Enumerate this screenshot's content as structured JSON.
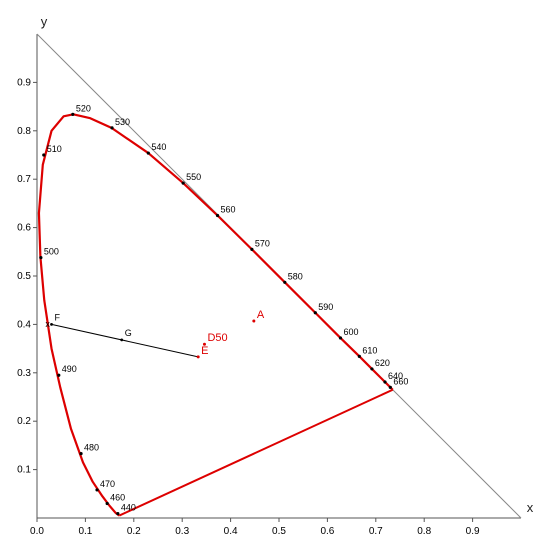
{
  "chart_data": {
    "type": "scatter",
    "title": "",
    "xlabel": "x",
    "ylabel": "y",
    "xlim": [
      0,
      1
    ],
    "ylim": [
      0,
      1
    ],
    "x_ticks": [
      0,
      0.1,
      0.2,
      0.3,
      0.4,
      0.5,
      0.6,
      0.7,
      0.8,
      0.9
    ],
    "x_tick_labels": [
      "0.0",
      "0.1",
      "0.2",
      "0.3",
      "0.4",
      "0.5",
      "0.6",
      "0.7",
      "0.8",
      "0.9"
    ],
    "y_ticks": [
      0.1,
      0.2,
      0.3,
      0.4,
      0.5,
      0.6,
      0.7,
      0.8,
      0.9
    ],
    "y_tick_labels": [
      "0.1",
      "0.2",
      "0.3",
      "0.4",
      "0.5",
      "0.6",
      "0.7",
      "0.8",
      "0.9"
    ],
    "grid": false,
    "legend": "none",
    "colors": {
      "locus": "#dd0000",
      "diagonal": "#888888",
      "axis": "#555555",
      "line": "#000000",
      "illuminant_label": "#dd0000"
    },
    "spectral_locus": [
      {
        "x": 0.17,
        "y": 0.005
      },
      {
        "x": 0.163,
        "y": 0.01
      },
      {
        "x": 0.15,
        "y": 0.025
      },
      {
        "x": 0.135,
        "y": 0.045
      },
      {
        "x": 0.115,
        "y": 0.075
      },
      {
        "x": 0.095,
        "y": 0.115
      },
      {
        "x": 0.07,
        "y": 0.185
      },
      {
        "x": 0.048,
        "y": 0.27
      },
      {
        "x": 0.03,
        "y": 0.35
      },
      {
        "x": 0.015,
        "y": 0.45
      },
      {
        "x": 0.007,
        "y": 0.54
      },
      {
        "x": 0.004,
        "y": 0.63
      },
      {
        "x": 0.012,
        "y": 0.73
      },
      {
        "x": 0.03,
        "y": 0.8
      },
      {
        "x": 0.055,
        "y": 0.83
      },
      {
        "x": 0.075,
        "y": 0.834
      },
      {
        "x": 0.11,
        "y": 0.826
      },
      {
        "x": 0.154,
        "y": 0.806
      },
      {
        "x": 0.23,
        "y": 0.754
      },
      {
        "x": 0.302,
        "y": 0.692
      },
      {
        "x": 0.373,
        "y": 0.625
      },
      {
        "x": 0.444,
        "y": 0.555
      },
      {
        "x": 0.512,
        "y": 0.487
      },
      {
        "x": 0.575,
        "y": 0.424
      },
      {
        "x": 0.627,
        "y": 0.372
      },
      {
        "x": 0.666,
        "y": 0.334
      },
      {
        "x": 0.692,
        "y": 0.308
      },
      {
        "x": 0.715,
        "y": 0.285
      },
      {
        "x": 0.735,
        "y": 0.265
      }
    ],
    "purple_line": [
      {
        "x": 0.735,
        "y": 0.265
      },
      {
        "x": 0.17,
        "y": 0.005
      }
    ],
    "wavelength_marks": [
      {
        "label": "440",
        "x": 0.167,
        "y": 0.009
      },
      {
        "label": "460",
        "x": 0.145,
        "y": 0.03
      },
      {
        "label": "470",
        "x": 0.124,
        "y": 0.058
      },
      {
        "label": "480",
        "x": 0.091,
        "y": 0.133
      },
      {
        "label": "490",
        "x": 0.045,
        "y": 0.295
      },
      {
        "label": "500",
        "x": 0.008,
        "y": 0.538
      },
      {
        "label": "510",
        "x": 0.014,
        "y": 0.75
      },
      {
        "label": "520",
        "x": 0.074,
        "y": 0.834
      },
      {
        "label": "530",
        "x": 0.155,
        "y": 0.806
      },
      {
        "label": "540",
        "x": 0.23,
        "y": 0.754
      },
      {
        "label": "550",
        "x": 0.302,
        "y": 0.692
      },
      {
        "label": "560",
        "x": 0.373,
        "y": 0.625
      },
      {
        "label": "570",
        "x": 0.444,
        "y": 0.555
      },
      {
        "label": "580",
        "x": 0.512,
        "y": 0.487
      },
      {
        "label": "590",
        "x": 0.575,
        "y": 0.424
      },
      {
        "label": "600",
        "x": 0.627,
        "y": 0.372
      },
      {
        "label": "610",
        "x": 0.666,
        "y": 0.334
      },
      {
        "label": "620",
        "x": 0.692,
        "y": 0.308
      },
      {
        "label": "640",
        "x": 0.719,
        "y": 0.281
      },
      {
        "label": "660",
        "x": 0.73,
        "y": 0.27
      }
    ],
    "line_FE": [
      {
        "x": 0.03,
        "y": 0.4
      },
      {
        "x": 0.333,
        "y": 0.333
      }
    ],
    "points": [
      {
        "label": "F",
        "x": 0.03,
        "y": 0.4
      },
      {
        "label": "G",
        "x": 0.175,
        "y": 0.368
      }
    ],
    "illuminants": [
      {
        "label": "A",
        "x": 0.448,
        "y": 0.407
      },
      {
        "label": "D50",
        "x": 0.346,
        "y": 0.359
      },
      {
        "label": "E",
        "x": 0.333,
        "y": 0.333
      }
    ],
    "x_marker": {
      "label": "x",
      "x": 0.022,
      "y": 0.395
    }
  }
}
